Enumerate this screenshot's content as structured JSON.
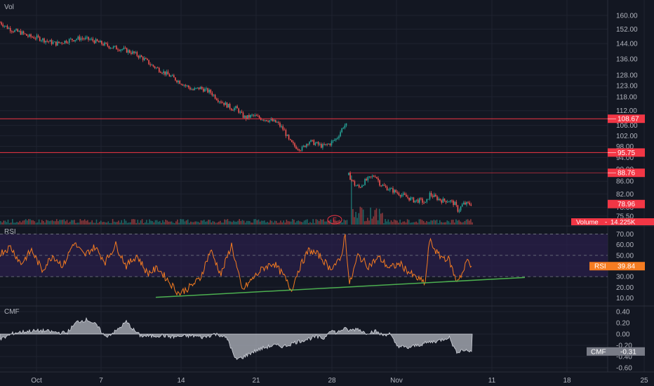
{
  "colors": {
    "bg": "#131722",
    "grid": "#1f2330",
    "up": "#26a69a",
    "down": "#ef5350",
    "level": "#f23645",
    "rsi_line": "#f57c21",
    "rsi_band": "#2a1f4a",
    "trend": "#4caf50",
    "cmf_fill": "#b2b5be"
  },
  "chart_data": [
    {
      "type": "candlestick",
      "pane": "price",
      "title": "Vol",
      "yticks": [
        160.0,
        152.0,
        144.0,
        136.0,
        128.0,
        123.0,
        118.0,
        112.0,
        106.0,
        102.0,
        98.0,
        94.0,
        90.0,
        86.0,
        82.0,
        78.0,
        75.5
      ],
      "ylim": [
        73.5,
        166
      ],
      "y_scale": "log",
      "levels": [
        {
          "label": "108.67",
          "value": 108.67
        },
        {
          "label": "95.75",
          "value": 95.75
        },
        {
          "label": "88.76",
          "value": 88.76
        }
      ],
      "last_price_label": "78.96",
      "earnings_marker": "E",
      "volume_label": "Volume",
      "volume_value": "14.225K",
      "anchors": [
        [
          0,
          156
        ],
        [
          10,
          153
        ],
        [
          20,
          151
        ],
        [
          30,
          150
        ],
        [
          40,
          148
        ],
        [
          55,
          147
        ],
        [
          70,
          145
        ],
        [
          80,
          144
        ],
        [
          90,
          145
        ],
        [
          100,
          146
        ],
        [
          115,
          147
        ],
        [
          130,
          146
        ],
        [
          145,
          144
        ],
        [
          160,
          142
        ],
        [
          175,
          141
        ],
        [
          190,
          139
        ],
        [
          205,
          136
        ],
        [
          215,
          133
        ],
        [
          225,
          131
        ],
        [
          235,
          129
        ],
        [
          245,
          127
        ],
        [
          255,
          125
        ],
        [
          265,
          123
        ],
        [
          275,
          121
        ],
        [
          285,
          122
        ],
        [
          300,
          120
        ],
        [
          310,
          117
        ],
        [
          320,
          115
        ],
        [
          330,
          113
        ],
        [
          337,
          113
        ],
        [
          340,
          112
        ],
        [
          345,
          110
        ],
        [
          350,
          109
        ],
        [
          360,
          110
        ],
        [
          370,
          109
        ],
        [
          385,
          108
        ],
        [
          395,
          107
        ],
        [
          405,
          104
        ],
        [
          412,
          100
        ],
        [
          420,
          98
        ],
        [
          430,
          97
        ],
        [
          440,
          100
        ],
        [
          450,
          99
        ],
        [
          460,
          98
        ],
        [
          470,
          99
        ],
        [
          480,
          101
        ],
        [
          490,
          106
        ],
        [
          495,
          106
        ]
      ],
      "anchors2": [
        [
          497,
          88
        ],
        [
          505,
          85
        ],
        [
          512,
          84
        ],
        [
          520,
          86
        ],
        [
          527,
          87
        ],
        [
          535,
          88
        ],
        [
          542,
          85
        ],
        [
          550,
          84
        ],
        [
          560,
          83
        ],
        [
          570,
          82
        ],
        [
          580,
          81
        ],
        [
          590,
          80
        ],
        [
          600,
          80
        ],
        [
          607,
          79
        ],
        [
          612,
          82
        ],
        [
          620,
          81
        ],
        [
          630,
          80
        ],
        [
          640,
          80
        ],
        [
          648,
          79
        ],
        [
          653,
          77
        ],
        [
          660,
          79
        ],
        [
          667,
          79
        ],
        [
          673,
          79
        ]
      ]
    },
    {
      "type": "line",
      "pane": "rsi",
      "title": "RSI",
      "yticks": [
        70.0,
        60.0,
        50.0,
        40.0,
        30.0,
        20.0,
        10.0
      ],
      "ylim": [
        5,
        75
      ],
      "band": [
        30,
        70
      ],
      "last_label": "RSI",
      "last_value": "39.84",
      "last_number": 39.84,
      "trendline": [
        [
          222,
          10.5
        ],
        [
          748,
          29.2
        ]
      ]
    },
    {
      "type": "area",
      "pane": "cmf",
      "title": "CMF",
      "yticks": [
        0.4,
        0.2,
        0.0,
        -0.2,
        -0.4,
        -0.6
      ],
      "ylim": [
        -0.65,
        0.45
      ],
      "last_label": "CMF",
      "last_value": "-0.31",
      "last_number": -0.31
    }
  ],
  "x_axis": {
    "labels": [
      {
        "text": "Oct",
        "x": 52
      },
      {
        "text": "7",
        "x": 144
      },
      {
        "text": "14",
        "x": 258
      },
      {
        "text": "21",
        "x": 365
      },
      {
        "text": "28",
        "x": 473
      },
      {
        "text": "Nov",
        "x": 565
      },
      {
        "text": "11",
        "x": 701
      },
      {
        "text": "18",
        "x": 808
      },
      {
        "text": "25",
        "x": 918
      }
    ]
  }
}
